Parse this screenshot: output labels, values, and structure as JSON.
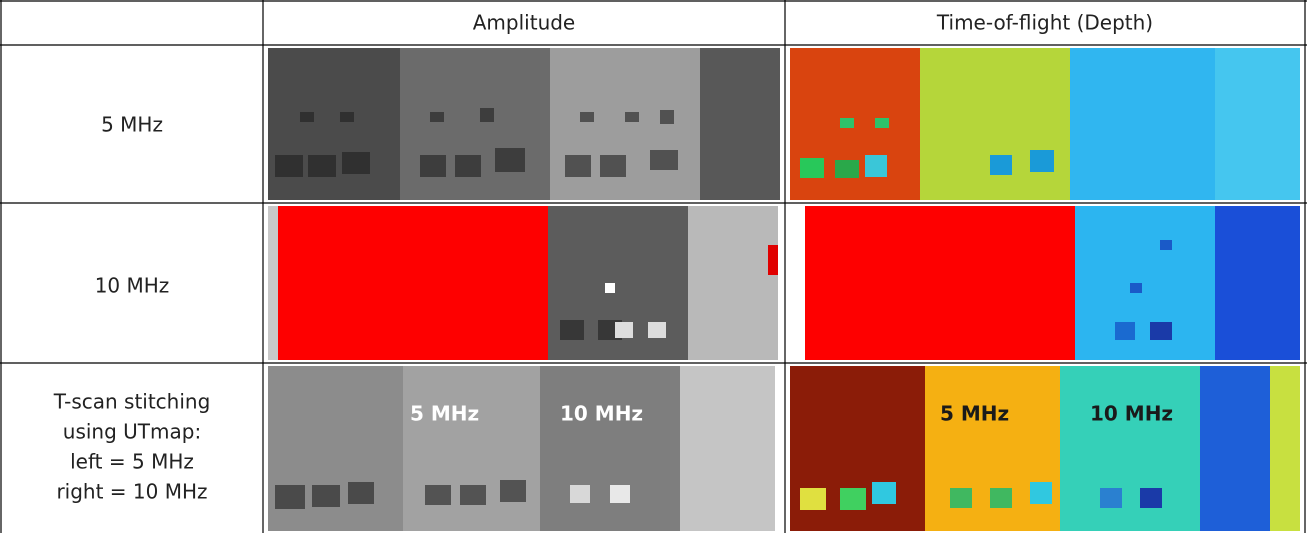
{
  "table": {
    "columns": [
      "Amplitude",
      "Time-of-flight (Depth)"
    ],
    "rows": [
      {
        "label": "5 MHz"
      },
      {
        "label": "10 MHz"
      },
      {
        "label_lines": [
          "T-scan stitching",
          "using UTmap:",
          "left = 5 MHz",
          "right = 10 MHz"
        ],
        "image_labels": [
          "5 MHz",
          "10 MHz"
        ]
      }
    ]
  }
}
